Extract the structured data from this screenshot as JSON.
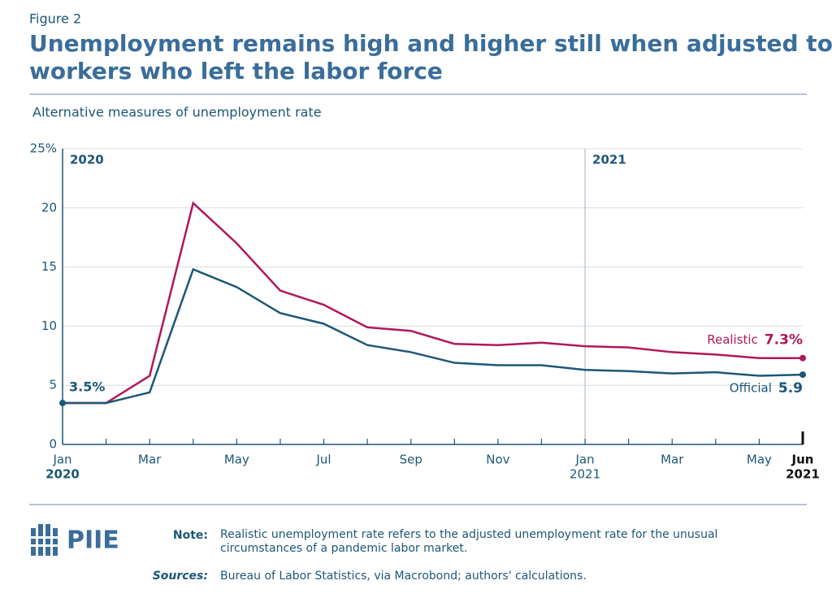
{
  "figure_label": "Figure 2",
  "title": "Unemployment remains high and higher still when adjusted to include workers who left the labor force",
  "chart_data": {
    "type": "line",
    "subtitle": "Alternative measures of unemployment rate",
    "categories": [
      "Jan",
      null,
      "Mar",
      null,
      "May",
      null,
      "Jul",
      null,
      "Sep",
      null,
      "Nov",
      null,
      "Jan",
      null,
      "Mar",
      null,
      "May",
      "Jun"
    ],
    "category_years": [
      "2020",
      null,
      null,
      null,
      null,
      null,
      null,
      null,
      null,
      null,
      null,
      null,
      "2021",
      null,
      null,
      null,
      null,
      "2021"
    ],
    "periods": [
      "2020",
      "2021"
    ],
    "ylim": [
      0,
      25
    ],
    "yticks": [
      0,
      5,
      10,
      15,
      20,
      {
        "value": 25,
        "label": "25%"
      }
    ],
    "grid": true,
    "series": [
      {
        "name": "Realistic",
        "color": "#b0175b",
        "values": [
          3.5,
          3.5,
          5.8,
          20.4,
          17.0,
          13.0,
          11.8,
          9.9,
          9.6,
          8.5,
          8.4,
          8.6,
          8.3,
          8.2,
          7.8,
          7.6,
          7.3,
          7.3
        ],
        "value_labels": [
          null,
          null,
          null,
          null,
          null,
          null,
          null,
          null,
          null,
          null,
          null,
          null,
          null,
          null,
          null,
          null,
          null,
          "7.3%"
        ]
      },
      {
        "name": "Official",
        "color": "#1c5777",
        "values": [
          3.5,
          3.5,
          4.4,
          14.8,
          13.3,
          11.1,
          10.2,
          8.4,
          7.8,
          6.9,
          6.7,
          6.7,
          6.3,
          6.2,
          6.0,
          6.1,
          5.8,
          5.9
        ],
        "value_labels": [
          "3.5%",
          null,
          null,
          null,
          null,
          null,
          null,
          null,
          null,
          null,
          null,
          null,
          null,
          null,
          null,
          null,
          null,
          "5.9"
        ]
      }
    ]
  },
  "footer": {
    "logo": "PIIE",
    "note_label": "Note:",
    "note": "Realistic unemployment rate refers to the adjusted unemployment rate for the unusual circumstances of a pandemic labor market.",
    "sources_label": "Sources:",
    "sources": "Bureau of Labor Statistics, via Macrobond; authors' calculations."
  }
}
